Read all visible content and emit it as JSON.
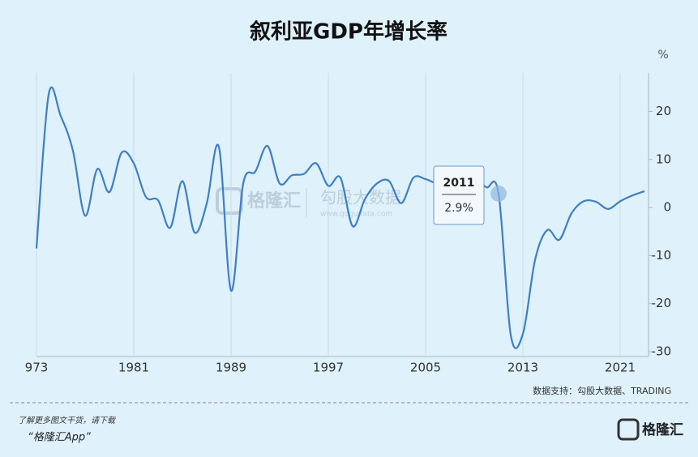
{
  "chart_data": {
    "type": "line",
    "title": "叙利亚GDP年增长率",
    "y_unit": "%",
    "x": [
      1973,
      1974,
      1975,
      1976,
      1977,
      1978,
      1979,
      1980,
      1981,
      1982,
      1983,
      1984,
      1985,
      1986,
      1987,
      1988,
      1989,
      1990,
      1991,
      1992,
      1993,
      1994,
      1995,
      1996,
      1997,
      1998,
      1999,
      2000,
      2001,
      2002,
      2003,
      2004,
      2005,
      2006,
      2007,
      2008,
      2009,
      2010,
      2011,
      2012,
      2013,
      2014,
      2015,
      2016,
      2017,
      2018,
      2019,
      2020,
      2021,
      2022,
      2023
    ],
    "series": [
      {
        "name": "GDP年增长率",
        "color": "#3f7fc1",
        "values": [
          -8.5,
          23.5,
          19,
          11.8,
          -1.7,
          8,
          3.2,
          11.4,
          9.2,
          2.2,
          1.5,
          -4.2,
          5.5,
          -5.2,
          0.8,
          12.6,
          -17.3,
          5,
          7.5,
          12.8,
          5,
          6.7,
          7,
          9.2,
          4.5,
          6.2,
          -3.9,
          1.7,
          5,
          5.5,
          0.9,
          6.2,
          5.9,
          5,
          5.7,
          4.5,
          5.9,
          4.2,
          2.9,
          -26.5,
          -26.3,
          -10.9,
          -4.7,
          -6.7,
          -1.2,
          1.3,
          1.2,
          -0.3,
          1.3,
          2.5,
          3.4
        ]
      }
    ],
    "xlim": [
      1973,
      2023
    ],
    "xticks": [
      {
        "value": 1973,
        "label": "973"
      },
      1981,
      1989,
      1997,
      2005,
      2013,
      2021
    ],
    "ylim": [
      -31,
      28
    ],
    "yticks": [
      -30,
      -20,
      -10,
      0,
      10,
      20
    ],
    "grid": true,
    "tooltip": {
      "title": "2011",
      "label": "2.9%"
    },
    "source": "数据支持：勾股大数据、TRADING",
    "watermark": {
      "brand": "格隆汇",
      "data": "勾股大数据",
      "url": "www.gogudata.com"
    },
    "footer": {
      "line1": "了解更多图文干货，请下载",
      "line2": "“格隆汇App”",
      "logo": "格隆汇"
    }
  }
}
